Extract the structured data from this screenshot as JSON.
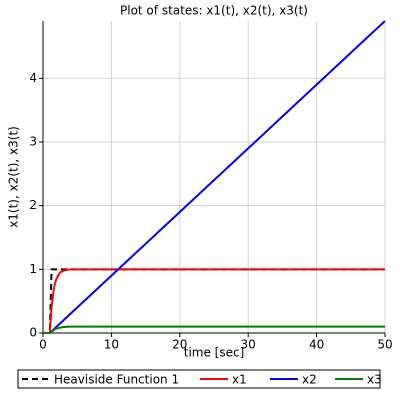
{
  "chart_data": {
    "type": "line",
    "title": "Plot of states: x1(t), x2(t), x3(t)",
    "x_label": "time [sec]",
    "y_label": "x1(t), x2(t), x3(t)",
    "x": [
      0,
      1,
      1.25,
      1.5,
      1.75,
      2,
      2.5,
      3,
      4,
      50
    ],
    "series": [
      {
        "name": "Heaviside Function 1",
        "color": "#000000",
        "style": "dashed",
        "values": [
          0,
          0,
          1,
          1,
          1,
          1,
          1,
          1,
          1,
          1
        ]
      },
      {
        "name": "x1",
        "color": "#ff0000",
        "style": "solid",
        "values": [
          0,
          0,
          0.4,
          0.63,
          0.78,
          0.86,
          0.95,
          0.98,
          1,
          1
        ]
      },
      {
        "name": "x2",
        "color": "#0000ff",
        "style": "solid",
        "values": [
          0,
          0,
          0.025,
          0.05,
          0.075,
          0.1,
          0.15,
          0.2,
          0.3,
          4.9
        ]
      },
      {
        "name": "x3",
        "color": "#008000",
        "style": "solid",
        "values": [
          0,
          0,
          0.02,
          0.04,
          0.06,
          0.07,
          0.085,
          0.095,
          0.1,
          0.1
        ]
      }
    ],
    "xlim": [
      0,
      50
    ],
    "xticks": [
      0,
      10,
      20,
      30,
      40,
      50
    ],
    "ylim": [
      0,
      4.9
    ],
    "yticks": [
      0,
      1,
      2,
      3,
      4
    ],
    "grid": true
  }
}
